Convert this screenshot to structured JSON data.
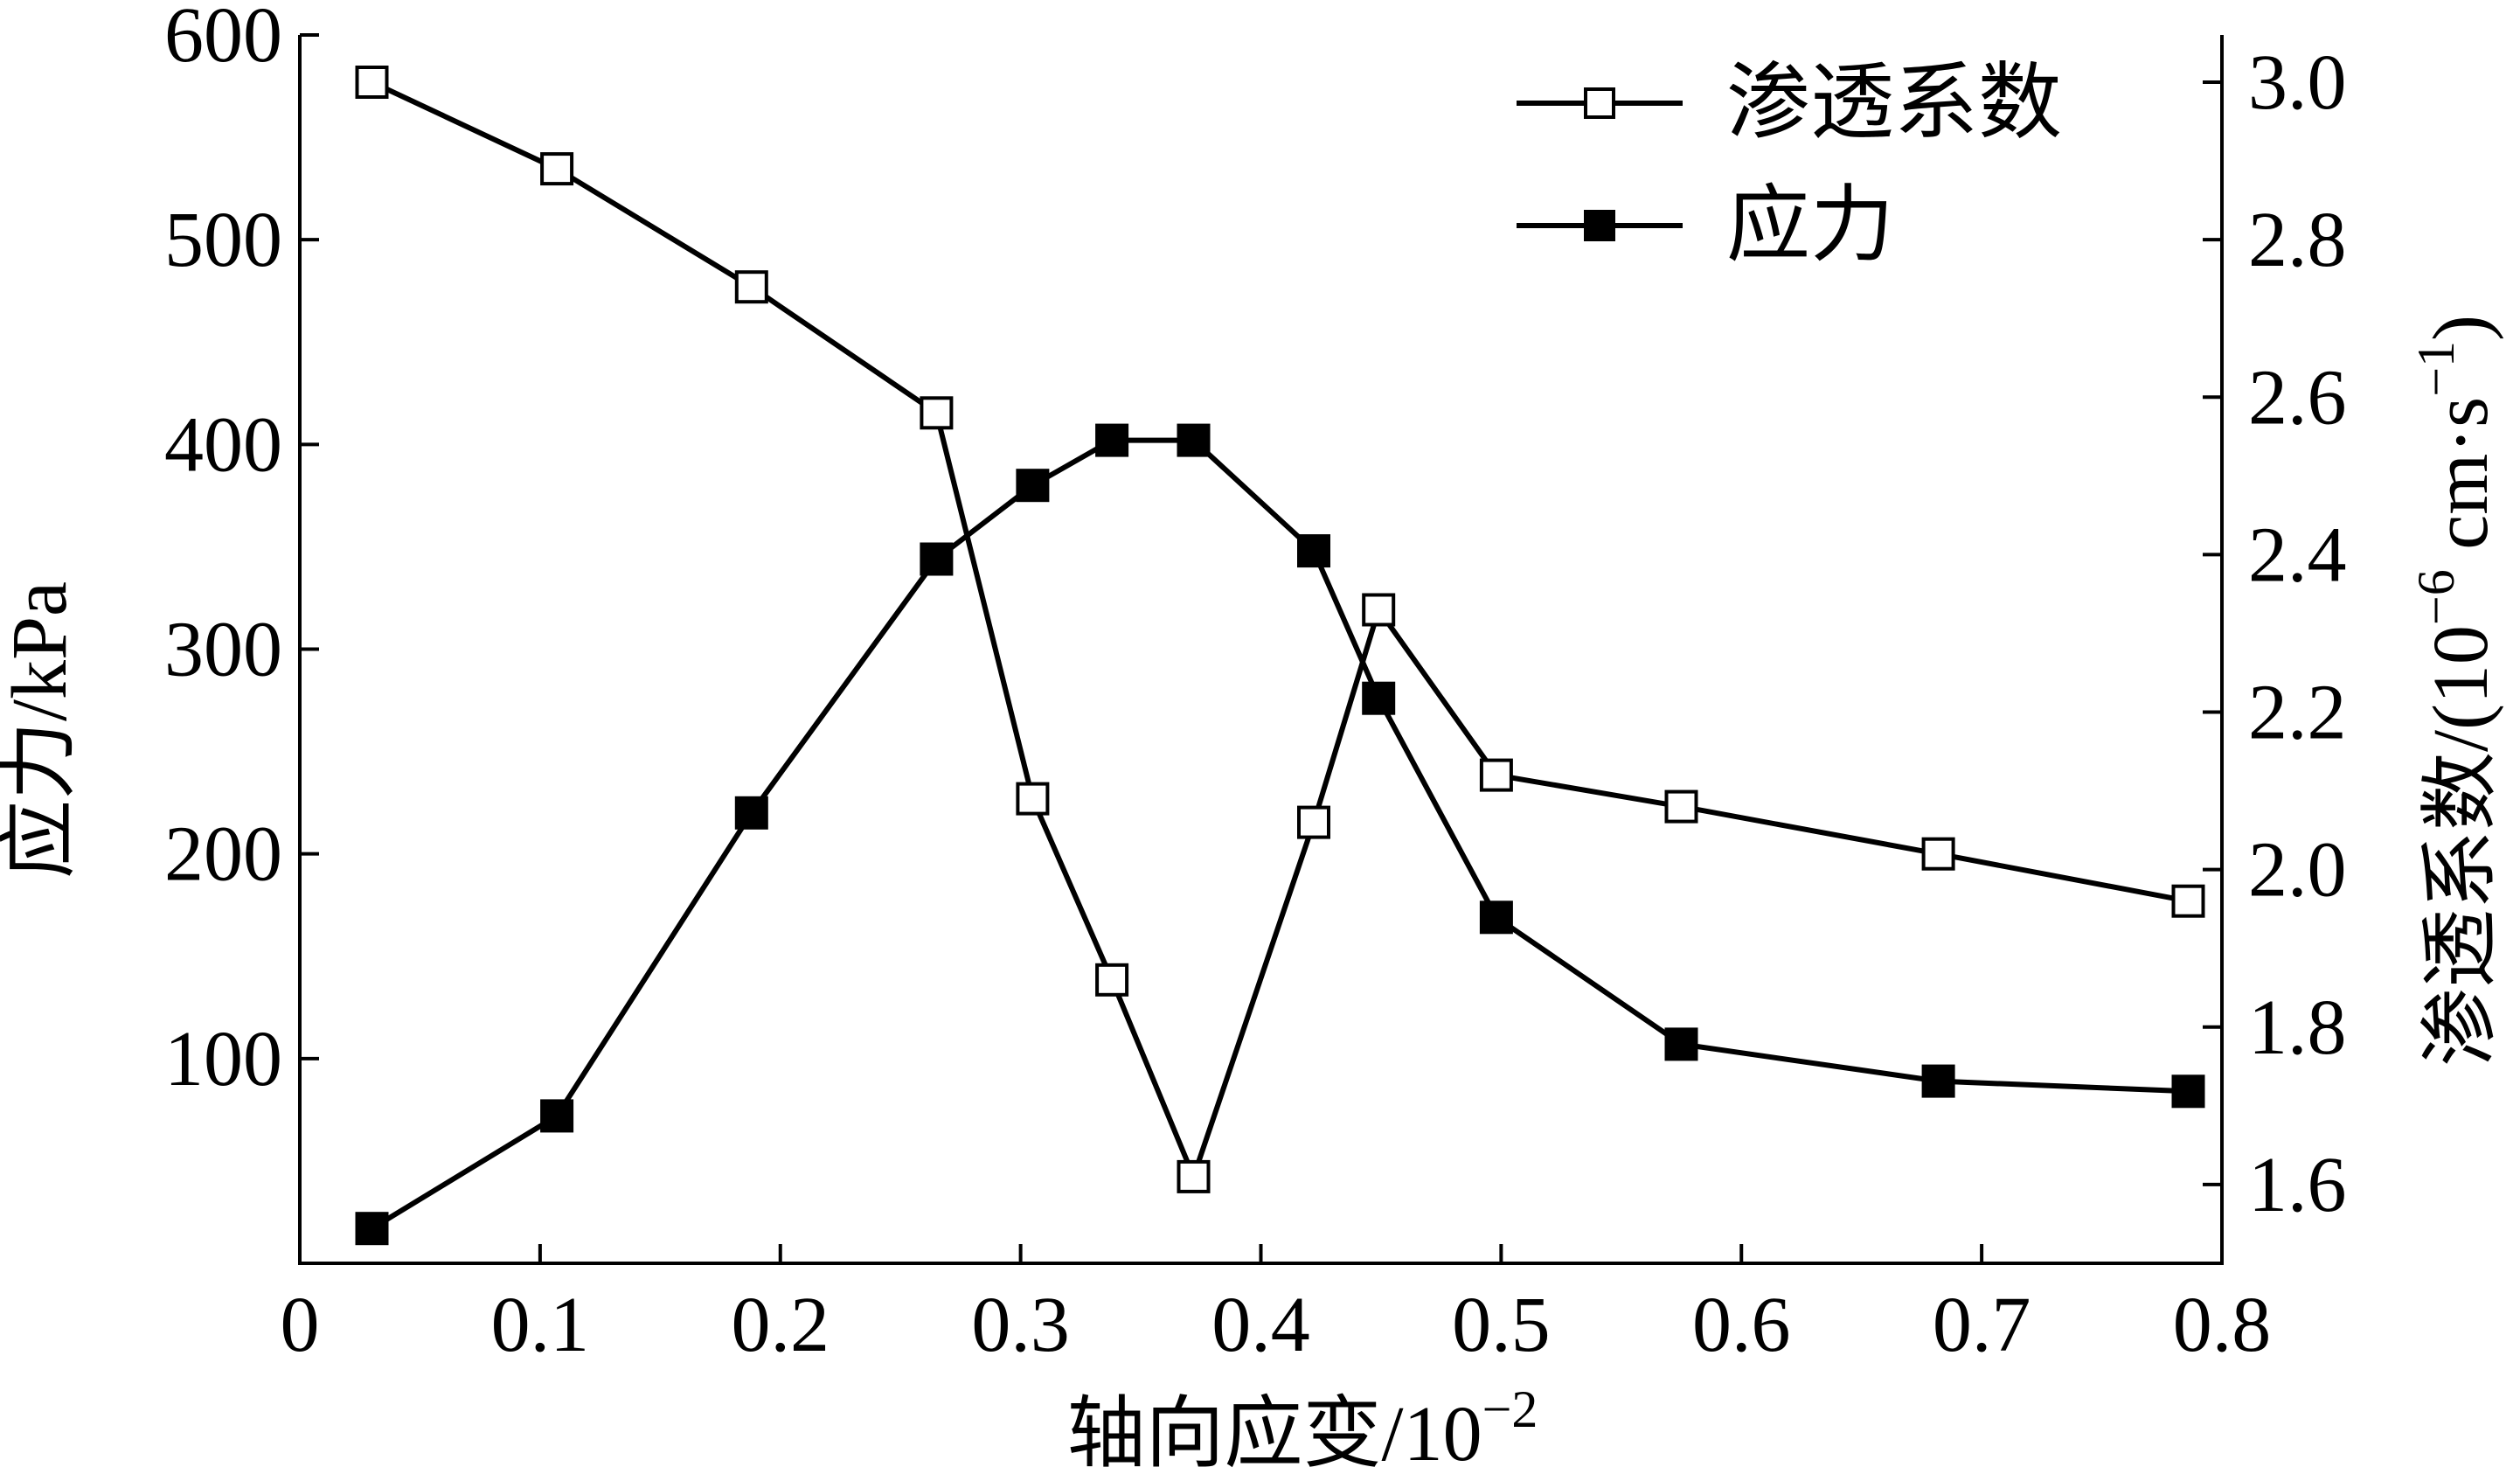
{
  "chart_data": {
    "type": "line",
    "xlabel": "轴向应变/10",
    "xlabel_sup": "−2",
    "ylabel_left": "应力/kPa",
    "ylabel_right_main": "渗透系数/(10",
    "ylabel_right_sup1": "−6",
    "ylabel_right_mid": " cm·s",
    "ylabel_right_sup2": "−1",
    "ylabel_right_end": ")",
    "xlim": [
      0,
      0.8
    ],
    "ylim_left": [
      0,
      600
    ],
    "ylim_right": [
      1.5,
      3.06
    ],
    "x_ticks": [
      0,
      0.1,
      0.2,
      0.3,
      0.4,
      0.5,
      0.6,
      0.7,
      0.8
    ],
    "x_tick_labels": [
      "0",
      "0.1",
      "0.2",
      "0.3",
      "0.4",
      "0.5",
      "0.6",
      "0.7",
      "0.8"
    ],
    "y_left_ticks": [
      100,
      200,
      300,
      400,
      500,
      600
    ],
    "y_left_tick_labels": [
      "100",
      "200",
      "300",
      "400",
      "500",
      "600"
    ],
    "y_right_ticks": [
      1.6,
      1.8,
      2.0,
      2.2,
      2.4,
      2.6,
      2.8,
      3.0
    ],
    "y_right_tick_labels": [
      "1.6",
      "1.8",
      "2.0",
      "2.2",
      "2.4",
      "2.6",
      "2.8",
      "3.0"
    ],
    "legend_position": "top-right",
    "grid": false,
    "series": [
      {
        "name": "渗透系数",
        "axis": "right",
        "marker": "open-square",
        "x": [
          0.03,
          0.107,
          0.188,
          0.265,
          0.305,
          0.338,
          0.372,
          0.422,
          0.449,
          0.498,
          0.575,
          0.682,
          0.786
        ],
        "y": [
          3.0,
          2.89,
          2.74,
          2.58,
          2.09,
          1.86,
          1.61,
          2.06,
          2.33,
          2.12,
          2.08,
          2.02,
          1.96
        ]
      },
      {
        "name": "应力",
        "axis": "left",
        "marker": "filled-square",
        "x": [
          0.03,
          0.107,
          0.188,
          0.265,
          0.305,
          0.338,
          0.372,
          0.422,
          0.449,
          0.498,
          0.575,
          0.682,
          0.786
        ],
        "y": [
          17,
          72,
          220,
          344,
          380,
          402,
          402,
          348,
          276,
          169,
          107,
          89,
          84
        ]
      }
    ]
  }
}
